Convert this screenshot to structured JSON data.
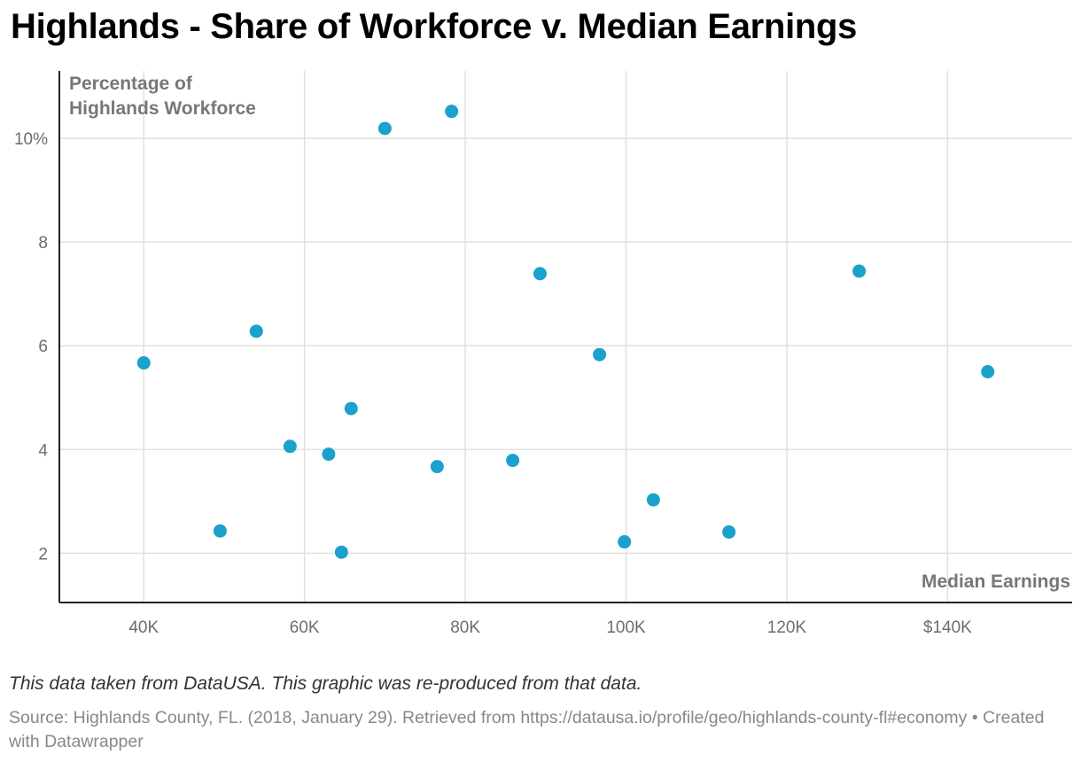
{
  "title": "Highlands - Share of Workforce v. Median Earnings",
  "note": "This data taken from DataUSA. This graphic was re-produced from that data.",
  "source": {
    "prefix": "Source: Highlands County, FL. (2018, January 29). Retrieved from https://datausa.io/profile/geo/highlands-county-fl#economy",
    "separator": " • ",
    "credit": "Created with Datawrapper"
  },
  "colors": {
    "dot": "#1aa1cc",
    "grid": "#e1e1e1",
    "axis": "#222222"
  },
  "chart_data": {
    "type": "scatter",
    "title": "Highlands - Share of Workforce v. Median Earnings",
    "ylabel_lines": [
      "Percentage of",
      "Highlands Workforce"
    ],
    "xlabel": "Median Earnings",
    "xlim": [
      29500,
      155500
    ],
    "ylim": [
      1.05,
      11.3
    ],
    "x_ticks": [
      40000,
      60000,
      80000,
      100000,
      120000,
      140000
    ],
    "x_tick_labels": [
      "40K",
      "60K",
      "80K",
      "100K",
      "120K",
      "$140K"
    ],
    "y_ticks": [
      2,
      4,
      6,
      8,
      10
    ],
    "y_tick_labels": [
      "2",
      "4",
      "6",
      "8",
      "10%"
    ],
    "grid": true,
    "points": [
      {
        "x": 40000,
        "y": 5.67
      },
      {
        "x": 49500,
        "y": 2.43
      },
      {
        "x": 54000,
        "y": 6.28
      },
      {
        "x": 58200,
        "y": 4.06
      },
      {
        "x": 63000,
        "y": 3.91
      },
      {
        "x": 64600,
        "y": 2.02
      },
      {
        "x": 65800,
        "y": 4.79
      },
      {
        "x": 70000,
        "y": 10.19
      },
      {
        "x": 76500,
        "y": 3.67
      },
      {
        "x": 78300,
        "y": 10.52
      },
      {
        "x": 85900,
        "y": 3.79
      },
      {
        "x": 89300,
        "y": 7.39
      },
      {
        "x": 96700,
        "y": 5.83
      },
      {
        "x": 99800,
        "y": 2.22
      },
      {
        "x": 103400,
        "y": 3.03
      },
      {
        "x": 112800,
        "y": 2.41
      },
      {
        "x": 129000,
        "y": 7.44
      },
      {
        "x": 145000,
        "y": 5.5
      }
    ]
  }
}
